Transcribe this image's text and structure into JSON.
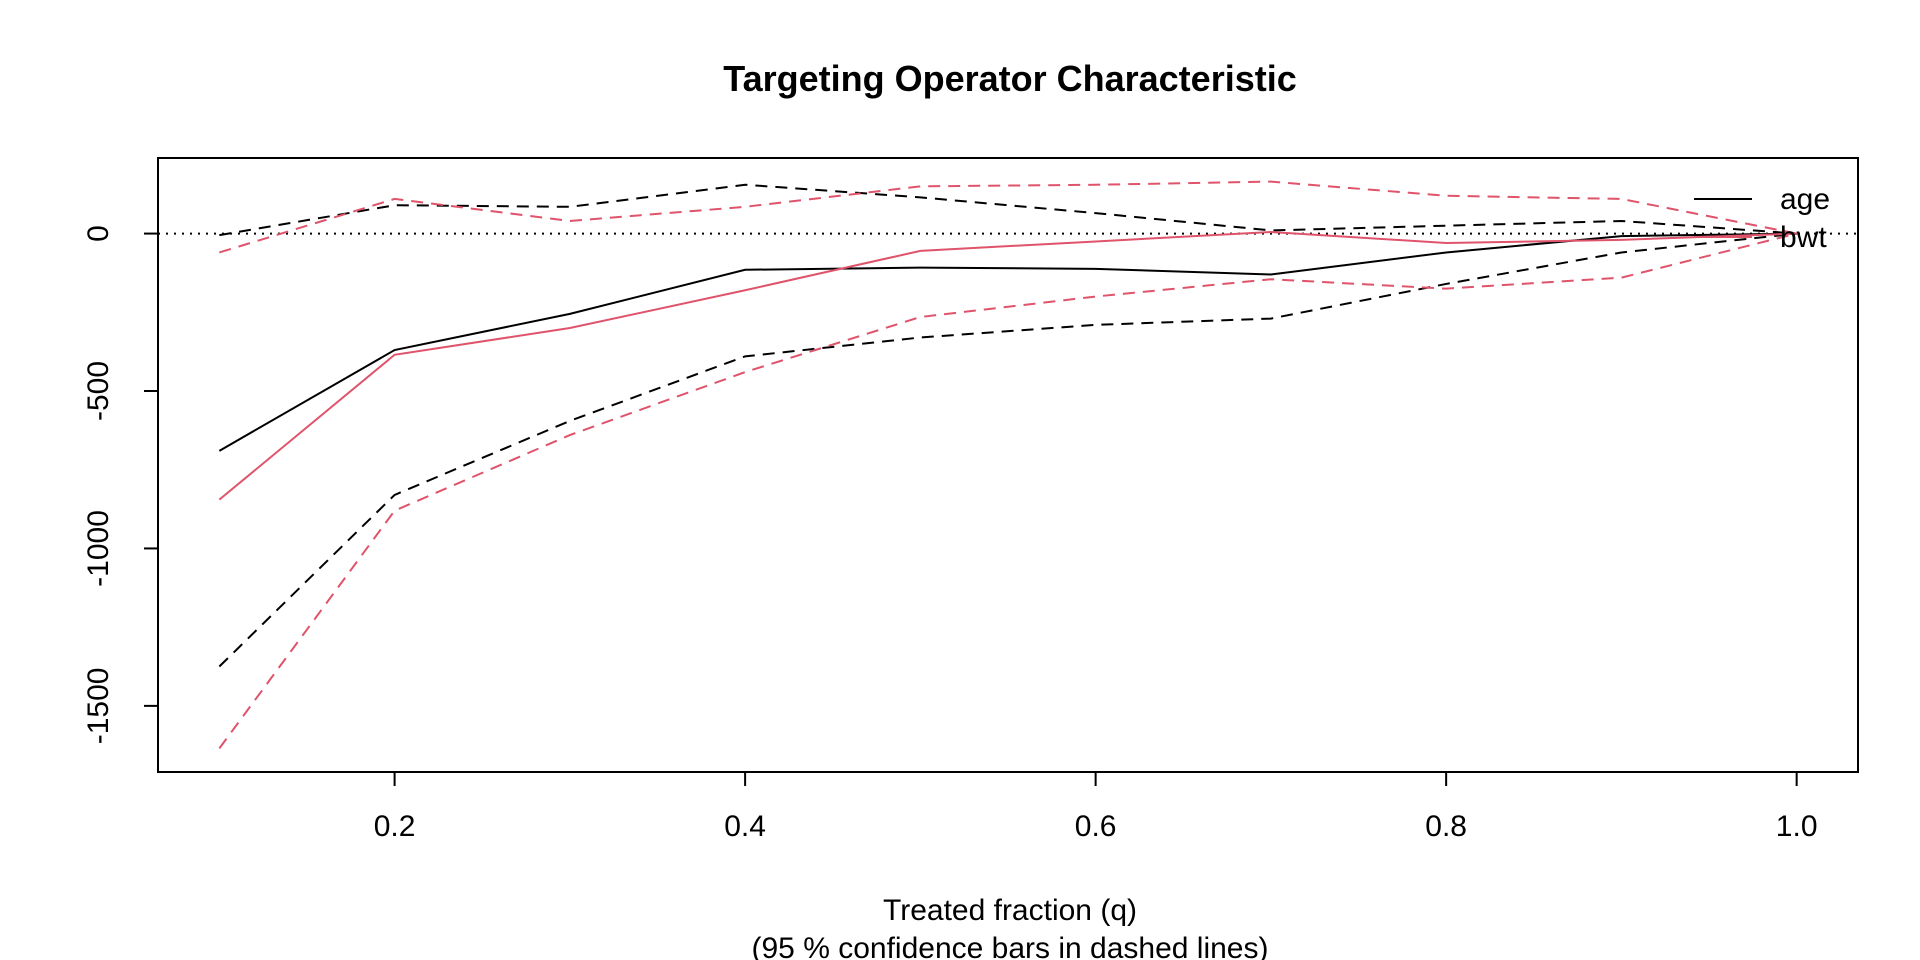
{
  "chart_data": {
    "type": "line",
    "title": "Targeting Operator Characteristic",
    "xlabel": "Treated fraction (q)",
    "xlabel_sub": "(95 % confidence bars in dashed lines)",
    "ylabel": "",
    "xlim": [
      0.065,
      1.035
    ],
    "ylim": [
      -1710,
      240
    ],
    "x_ticks": [
      0.2,
      0.4,
      0.6,
      0.8,
      1.0
    ],
    "x_tick_labels": [
      "0.2",
      "0.4",
      "0.6",
      "0.8",
      "1.0"
    ],
    "y_ticks": [
      0,
      -500,
      -1000,
      -1500
    ],
    "y_tick_labels": [
      "0",
      "-500",
      "-1000",
      "-1500"
    ],
    "reference_line": 0,
    "grid": false,
    "legend_position": "top-right",
    "x": [
      0.1,
      0.2,
      0.3,
      0.4,
      0.5,
      0.6,
      0.7,
      0.8,
      0.9,
      1.0
    ],
    "series": [
      {
        "name": "age",
        "color": "#000000",
        "values": [
          -690,
          -370,
          -255,
          -115,
          -108,
          -112,
          -130,
          -60,
          -8,
          0
        ],
        "lower": [
          -1375,
          -830,
          -595,
          -390,
          -330,
          -290,
          -270,
          -160,
          -60,
          0
        ],
        "upper": [
          -5,
          90,
          85,
          155,
          115,
          65,
          10,
          25,
          40,
          0
        ]
      },
      {
        "name": "bwt",
        "color": "#DF536B",
        "values": [
          -845,
          -385,
          -300,
          -180,
          -55,
          -25,
          5,
          -30,
          -20,
          0
        ],
        "lower": [
          -1635,
          -880,
          -640,
          -440,
          -265,
          -200,
          -145,
          -175,
          -140,
          0
        ],
        "upper": [
          -60,
          110,
          40,
          85,
          150,
          155,
          165,
          120,
          110,
          0
        ]
      }
    ]
  }
}
